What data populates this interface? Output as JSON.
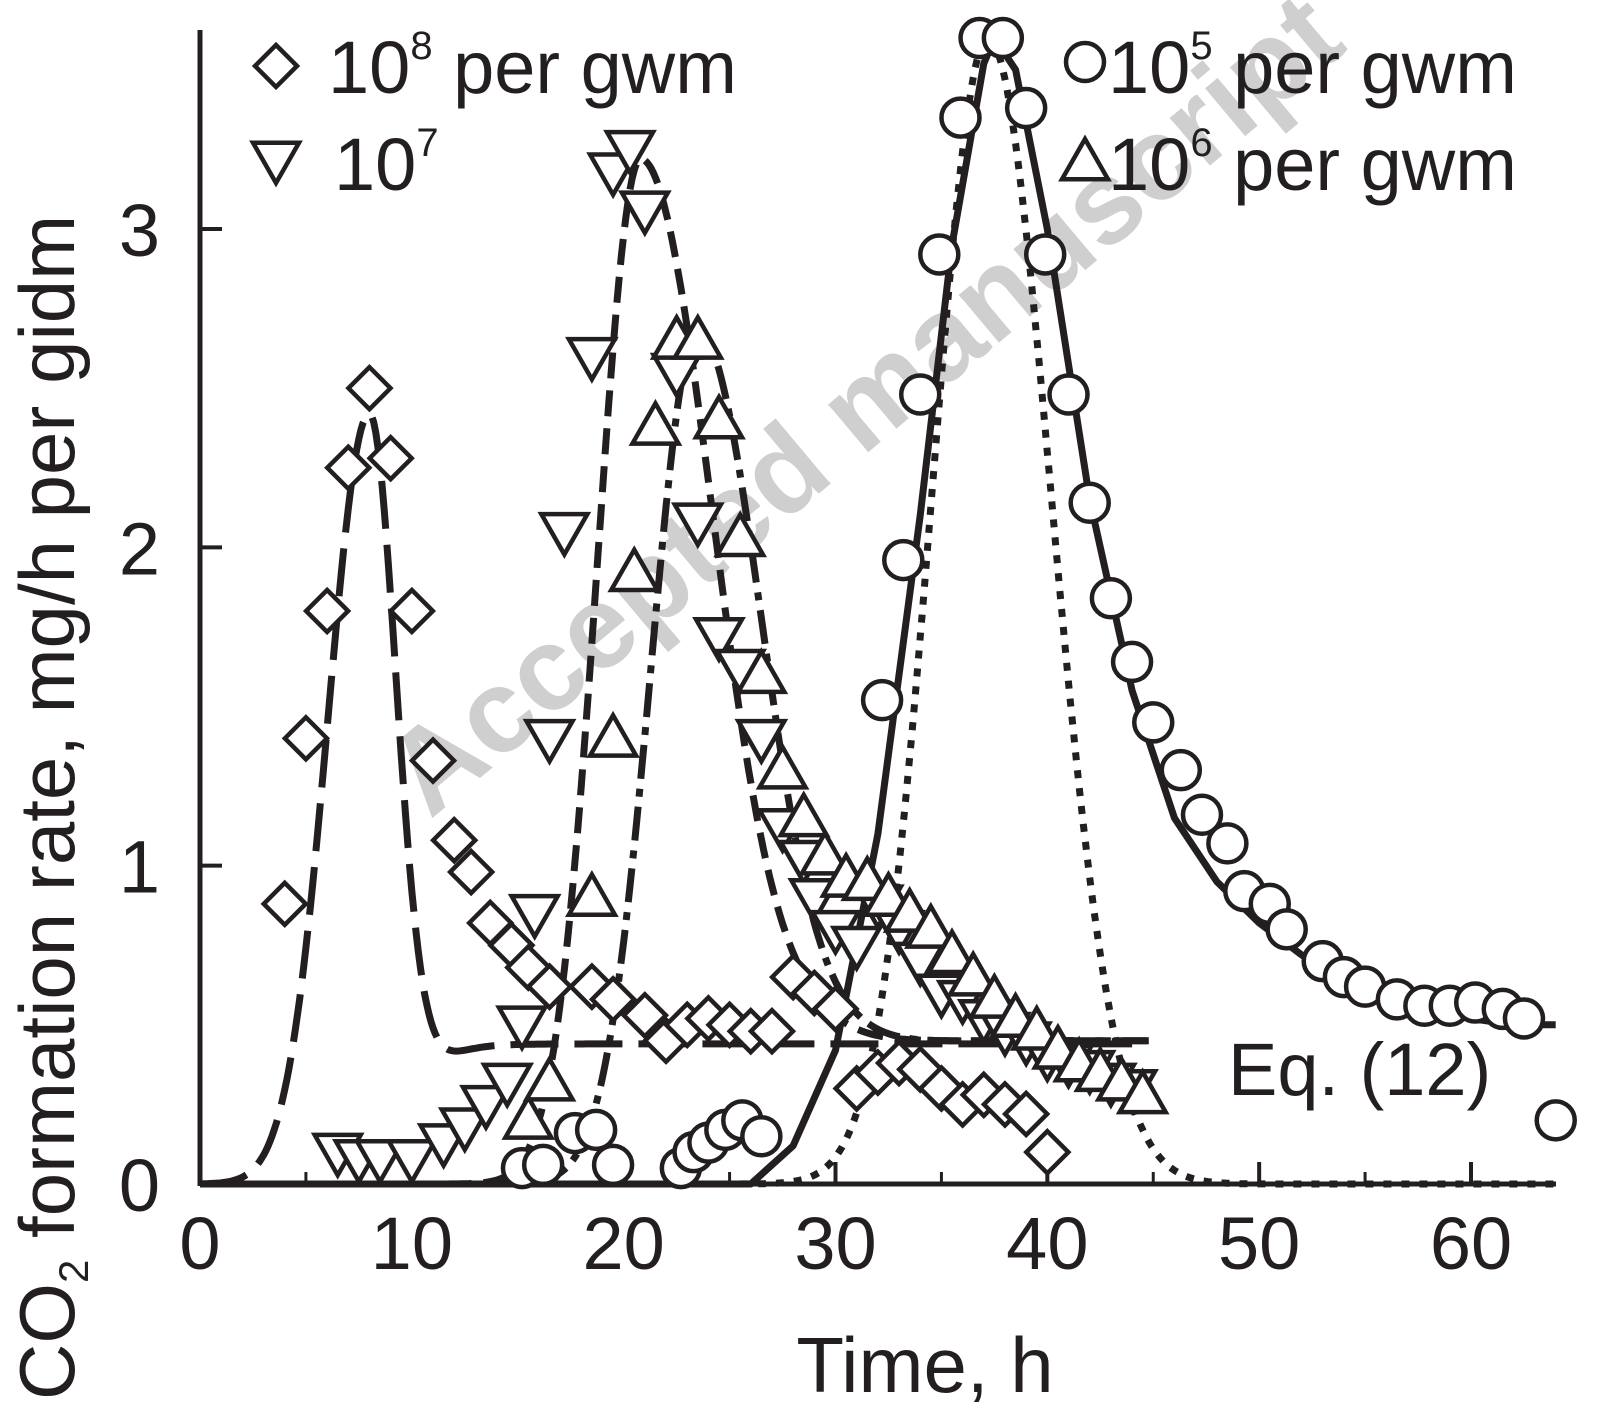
{
  "chart_data": {
    "type": "scatter",
    "xlabel": "Time, h",
    "ylabel": {
      "prefix": "CO",
      "subscript": "2",
      "suffix": " formation rate, mg/h per gidm"
    },
    "xlim": [
      0,
      64
    ],
    "ylim": [
      0,
      3.65
    ],
    "x_ticks": [
      0,
      10,
      20,
      30,
      40,
      50,
      60
    ],
    "y_ticks": [
      0,
      1,
      2,
      3
    ],
    "annotation": "Eq. (12)",
    "watermark": "Accepted manuscript",
    "colors": {
      "ink": "#231f20",
      "watermark": "#cfcfcf",
      "background": "#ffffff"
    },
    "legend": [
      {
        "marker": "diamond",
        "base": "10",
        "exp": "8",
        "text": " per gwm",
        "placement": "top-left"
      },
      {
        "marker": "triangle-down",
        "base": "10",
        "exp": "7",
        "text": "",
        "placement": "top-left"
      },
      {
        "marker": "circle",
        "base": "10",
        "exp": "5",
        "text": " per gwm",
        "placement": "top-right"
      },
      {
        "marker": "triangle-up",
        "base": "10",
        "exp": "6",
        "text": " per gwm",
        "placement": "top-right"
      }
    ],
    "series": [
      {
        "marker": "diamond",
        "points": [
          [
            4,
            0.88
          ],
          [
            5,
            1.4
          ],
          [
            6,
            1.8
          ],
          [
            7,
            2.25
          ],
          [
            8,
            2.5
          ],
          [
            9,
            2.28
          ],
          [
            10,
            1.8
          ],
          [
            11,
            1.33
          ],
          [
            12,
            1.08
          ],
          [
            12.8,
            0.98
          ],
          [
            13.7,
            0.82
          ],
          [
            14.7,
            0.75
          ],
          [
            15.5,
            0.68
          ],
          [
            16.5,
            0.62
          ],
          [
            18.5,
            0.62
          ],
          [
            19.5,
            0.58
          ],
          [
            21,
            0.53
          ],
          [
            22,
            0.45
          ],
          [
            23,
            0.5
          ],
          [
            24,
            0.52
          ],
          [
            25,
            0.5
          ],
          [
            26,
            0.48
          ],
          [
            27,
            0.48
          ],
          [
            28,
            0.65
          ],
          [
            29,
            0.6
          ],
          [
            30,
            0.55
          ],
          [
            31,
            0.3
          ],
          [
            32,
            0.35
          ],
          [
            33,
            0.38
          ],
          [
            34,
            0.36
          ],
          [
            35,
            0.3
          ],
          [
            36,
            0.25
          ],
          [
            37,
            0.28
          ],
          [
            38,
            0.25
          ],
          [
            39,
            0.22
          ],
          [
            40,
            0.1
          ]
        ]
      },
      {
        "marker": "triangle-down",
        "points": [
          [
            6.5,
            0.1
          ],
          [
            7.5,
            0.08
          ],
          [
            8.5,
            0.08
          ],
          [
            10,
            0.08
          ],
          [
            11.5,
            0.13
          ],
          [
            12.5,
            0.18
          ],
          [
            13.5,
            0.25
          ],
          [
            14.5,
            0.32
          ],
          [
            15.2,
            0.5
          ],
          [
            15.8,
            0.85
          ],
          [
            16.5,
            1.4
          ],
          [
            17.2,
            2.05
          ],
          [
            18.5,
            2.6
          ],
          [
            19.5,
            3.18
          ],
          [
            20.3,
            3.25
          ],
          [
            21,
            3.06
          ],
          [
            22.5,
            2.55
          ],
          [
            23.5,
            2.08
          ],
          [
            24.5,
            1.72
          ],
          [
            25.5,
            1.62
          ],
          [
            26.5,
            1.4
          ],
          [
            27.5,
            1.12
          ],
          [
            28.5,
            1.02
          ],
          [
            29,
            0.9
          ],
          [
            30,
            0.8
          ],
          [
            31,
            0.75
          ],
          [
            32,
            0.88
          ],
          [
            33,
            0.8
          ],
          [
            34,
            0.7
          ],
          [
            35,
            0.6
          ],
          [
            36,
            0.58
          ],
          [
            37,
            0.52
          ],
          [
            38,
            0.48
          ],
          [
            39,
            0.45
          ],
          [
            40,
            0.4
          ],
          [
            41,
            0.38
          ],
          [
            42,
            0.36
          ],
          [
            43,
            0.32
          ],
          [
            44,
            0.3
          ]
        ]
      },
      {
        "marker": "triangle-up",
        "points": [
          [
            15.5,
            0.2
          ],
          [
            16.5,
            0.32
          ],
          [
            18.5,
            0.9
          ],
          [
            19.5,
            1.4
          ],
          [
            20.5,
            1.92
          ],
          [
            21.5,
            2.38
          ],
          [
            22.5,
            2.65
          ],
          [
            23.5,
            2.65
          ],
          [
            24.5,
            2.4
          ],
          [
            25.5,
            2.03
          ],
          [
            26.5,
            1.6
          ],
          [
            27.5,
            1.3
          ],
          [
            28.5,
            1.15
          ],
          [
            29.5,
            1.03
          ],
          [
            30.5,
            0.96
          ],
          [
            31.5,
            0.95
          ],
          [
            32.5,
            0.9
          ],
          [
            33.5,
            0.85
          ],
          [
            34.5,
            0.8
          ],
          [
            35.5,
            0.72
          ],
          [
            36.5,
            0.65
          ],
          [
            37.5,
            0.58
          ],
          [
            38.5,
            0.52
          ],
          [
            39.5,
            0.48
          ],
          [
            40.5,
            0.42
          ],
          [
            41.5,
            0.38
          ],
          [
            42.5,
            0.35
          ],
          [
            43.5,
            0.32
          ],
          [
            44.5,
            0.28
          ]
        ]
      },
      {
        "marker": "circle",
        "points": [
          [
            15.2,
            0.05
          ],
          [
            16.2,
            0.06
          ],
          [
            17.7,
            0.16
          ],
          [
            18.7,
            0.17
          ],
          [
            19.5,
            0.06
          ],
          [
            22.7,
            0.05
          ],
          [
            23.3,
            0.1
          ],
          [
            24,
            0.13
          ],
          [
            24.8,
            0.17
          ],
          [
            25.6,
            0.2
          ],
          [
            26.5,
            0.15
          ],
          [
            32.2,
            1.52
          ],
          [
            33.2,
            1.96
          ],
          [
            34,
            2.48
          ],
          [
            34.9,
            2.92
          ],
          [
            35.9,
            3.35
          ],
          [
            36.8,
            3.6
          ],
          [
            37.9,
            3.6
          ],
          [
            39,
            3.38
          ],
          [
            39.9,
            2.92
          ],
          [
            41,
            2.48
          ],
          [
            42,
            2.14
          ],
          [
            43,
            1.84
          ],
          [
            44,
            1.64
          ],
          [
            45,
            1.45
          ],
          [
            46.3,
            1.3
          ],
          [
            47.3,
            1.16
          ],
          [
            48.5,
            1.07
          ],
          [
            49.3,
            0.92
          ],
          [
            50.5,
            0.88
          ],
          [
            51.3,
            0.8
          ],
          [
            53,
            0.7
          ],
          [
            54,
            0.65
          ],
          [
            55,
            0.62
          ],
          [
            56.5,
            0.58
          ],
          [
            57.8,
            0.56
          ],
          [
            59,
            0.56
          ],
          [
            60.2,
            0.57
          ],
          [
            61.5,
            0.55
          ],
          [
            62.5,
            0.52
          ],
          [
            64,
            0.2
          ]
        ]
      }
    ],
    "curves": [
      {
        "style": "long-dash",
        "x0": 0,
        "x1": 44,
        "peak_x": 8,
        "peak_y": 2.42,
        "rise_width": 2.3,
        "fall_width": 1.7,
        "baseline": 0.44,
        "baseline_center": 10,
        "baseline_width": 0.9,
        "plateau_start": 12
      },
      {
        "style": "dash",
        "x0": 8,
        "x1": 45,
        "peak_x": 20.8,
        "peak_y": 3.22,
        "rise_width": 2.4,
        "fall_width": 4.7,
        "baseline": 0.45,
        "baseline_center": 27,
        "baseline_width": 1.3,
        "plateau_start": 22
      },
      {
        "style": "dash-dot",
        "x0": 10,
        "x1": 45,
        "peak_x": 23.5,
        "peak_y": 2.68,
        "rise_width": 2.6,
        "fall_width": 4.2,
        "baseline": 0.45,
        "baseline_center": 29,
        "baseline_width": 1.3,
        "plateau_start": 25
      },
      {
        "style": "solid",
        "x0": 0,
        "x1": 64,
        "peak_x": 37.4,
        "peak_y": 3.6,
        "rise_width": 3.3,
        "fall_width": 5.0,
        "baseline": 0.5,
        "baseline_center": 47,
        "baseline_width": 2.2,
        "plateau_start": 40,
        "late_solid_segment": [
          [
            15.5,
            0.0
          ],
          [
            24,
            0.0
          ],
          [
            26,
            0.0
          ],
          [
            28,
            0.12
          ],
          [
            30,
            0.42
          ],
          [
            32,
            1.1
          ],
          [
            34,
            2.1
          ],
          [
            35.5,
            2.95
          ],
          [
            37,
            3.52
          ],
          [
            37.5,
            3.6
          ],
          [
            38.5,
            3.5
          ],
          [
            40,
            3.0
          ],
          [
            42,
            2.15
          ],
          [
            44,
            1.55
          ],
          [
            46,
            1.15
          ],
          [
            48,
            0.95
          ],
          [
            50,
            0.82
          ],
          [
            52,
            0.72
          ],
          [
            54,
            0.63
          ],
          [
            56,
            0.57
          ],
          [
            58,
            0.54
          ],
          [
            60,
            0.52
          ],
          [
            62,
            0.5
          ],
          [
            64,
            0.5
          ]
        ]
      },
      {
        "style": "dot",
        "x0": 0,
        "x1": 64,
        "peak_x": 37.2,
        "peak_y": 3.6,
        "rise_width": 3.1,
        "fall_width": 3.8,
        "baseline": 0.0,
        "baseline_center": 48,
        "baseline_width": 2.0,
        "plateau_start": 40
      }
    ]
  }
}
